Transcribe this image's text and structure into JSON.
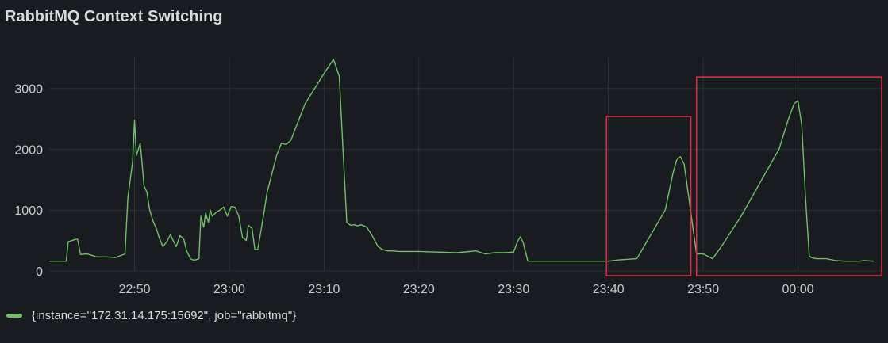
{
  "panel": {
    "title": "RabbitMQ Context Switching"
  },
  "colors": {
    "background": "#181b1f",
    "grid": "#2c3137",
    "series": "#73bf69",
    "highlight": "#e02f44"
  },
  "chart_data": {
    "type": "line",
    "title": "RabbitMQ Context Switching",
    "xlabel": "",
    "ylabel": "",
    "x_ticks": [
      "22:50",
      "23:00",
      "23:10",
      "23:20",
      "23:30",
      "23:40",
      "23:50",
      "00:00"
    ],
    "x_tick_minutes": [
      1370,
      1380,
      1390,
      1400,
      1410,
      1420,
      1430,
      1440
    ],
    "y_ticks": [
      0,
      1000,
      2000,
      3000
    ],
    "xlim": [
      1361,
      1449
    ],
    "ylim": [
      0,
      3700
    ],
    "grid": true,
    "legend_position": "bottom-left",
    "series": [
      {
        "name": "{instance=\"172.31.14.175:15692\", job=\"rabbitmq\"}",
        "color": "#73bf69",
        "x": [
          1361,
          1362.8,
          1363,
          1363.8,
          1364,
          1364.3,
          1365,
          1366,
          1367,
          1368,
          1369,
          1369.3,
          1369.8,
          1370,
          1370.2,
          1370.6,
          1370.9,
          1371,
          1371.3,
          1371.6,
          1372,
          1372.3,
          1372.6,
          1373,
          1373.4,
          1373.8,
          1374,
          1374.4,
          1374.8,
          1375.2,
          1375.5,
          1375.9,
          1376.2,
          1376.4,
          1376.8,
          1377,
          1377.3,
          1377.5,
          1377.8,
          1378,
          1378.2,
          1378.6,
          1379,
          1379.4,
          1379.8,
          1380.2,
          1380.6,
          1381,
          1381.4,
          1381.8,
          1382,
          1382.4,
          1382.7,
          1383,
          1383.6,
          1384,
          1384.5,
          1385,
          1385.5,
          1386,
          1386.5,
          1387,
          1387.5,
          1388,
          1389,
          1390,
          1391,
          1391.6,
          1392,
          1392.4,
          1392.8,
          1393.2,
          1393.5,
          1393.9,
          1394.5,
          1395,
          1395.7,
          1396.2,
          1396.7,
          1397,
          1398,
          1400,
          1402,
          1404,
          1406,
          1407,
          1408,
          1409,
          1410,
          1410.4,
          1410.7,
          1411,
          1411.5,
          1415,
          1419,
          1420,
          1421,
          1423,
          1424.5,
          1426,
          1426.4,
          1426.8,
          1427.2,
          1427.6,
          1428,
          1429.3,
          1430,
          1431,
          1432,
          1434,
          1436,
          1438,
          1439,
          1439.6,
          1440,
          1440.4,
          1440.8,
          1441.2,
          1441.6,
          1442,
          1443,
          1444,
          1445,
          1446,
          1446.5,
          1447,
          1448
        ],
        "y": [
          160,
          160,
          480,
          520,
          520,
          270,
          280,
          230,
          230,
          220,
          280,
          1200,
          1800,
          2480,
          1900,
          2100,
          1600,
          1400,
          1300,
          1000,
          800,
          700,
          550,
          400,
          480,
          600,
          520,
          400,
          580,
          520,
          330,
          200,
          180,
          180,
          200,
          900,
          720,
          950,
          800,
          1000,
          900,
          960,
          1000,
          1050,
          900,
          1060,
          1050,
          900,
          550,
          500,
          750,
          700,
          350,
          350,
          900,
          1300,
          1600,
          1900,
          2100,
          2080,
          2150,
          2350,
          2550,
          2750,
          3000,
          3250,
          3480,
          3200,
          2000,
          800,
          750,
          760,
          740,
          760,
          720,
          600,
          400,
          350,
          330,
          330,
          320,
          320,
          310,
          300,
          330,
          280,
          300,
          300,
          310,
          480,
          560,
          470,
          160,
          160,
          160,
          160,
          180,
          200,
          600,
          1000,
          1300,
          1600,
          1820,
          1880,
          1750,
          280,
          280,
          200,
          420,
          900,
          1450,
          2000,
          2500,
          2750,
          2800,
          2400,
          1200,
          240,
          210,
          200,
          200,
          170,
          160,
          160,
          160,
          170,
          160
        ]
      }
    ],
    "annotations": [
      {
        "type": "highlight-box",
        "x_start": 1419.8,
        "x_end": 1428.7,
        "y_top": 2540,
        "y_bottom": 0,
        "color": "#e02f44"
      },
      {
        "type": "highlight-box",
        "x_start": 1429.3,
        "x_end": 1449,
        "y_top": 3190,
        "y_bottom": 0,
        "color": "#e02f44"
      }
    ]
  },
  "legend": {
    "label": "{instance=\"172.31.14.175:15692\", job=\"rabbitmq\"}"
  }
}
